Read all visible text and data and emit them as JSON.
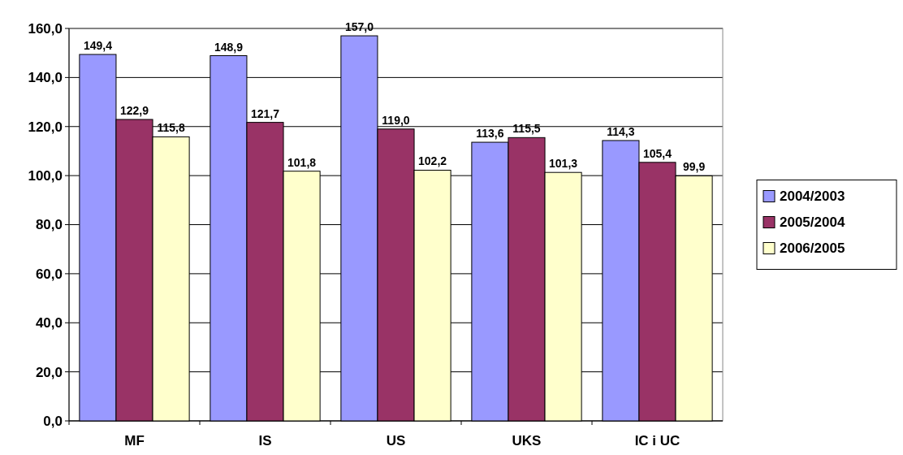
{
  "chart_data": {
    "type": "bar",
    "categories": [
      "MF",
      "IS",
      "US",
      "UKS",
      "IC i UC"
    ],
    "series": [
      {
        "name": "2004/2003",
        "color": "#9999ff",
        "values": [
          149.4,
          148.9,
          157.0,
          113.6,
          114.3
        ],
        "value_labels": [
          "149,4",
          "148,9",
          "157,0",
          "113,6",
          "114,3"
        ]
      },
      {
        "name": "2005/2004",
        "color": "#993366",
        "values": [
          122.9,
          121.7,
          119.0,
          115.5,
          105.4
        ],
        "value_labels": [
          "122,9",
          "121,7",
          "119,0",
          "115,5",
          "105,4"
        ]
      },
      {
        "name": "2006/2005",
        "color": "#ffffcc",
        "values": [
          115.8,
          101.8,
          102.2,
          101.3,
          99.9
        ],
        "value_labels": [
          "115,8",
          "101,8",
          "102,2",
          "101,3",
          "99,9"
        ]
      }
    ],
    "ylim": [
      0,
      160
    ],
    "yticks": [
      {
        "value": 0,
        "label": "0,0"
      },
      {
        "value": 20,
        "label": "20,0"
      },
      {
        "value": 40,
        "label": "40,0"
      },
      {
        "value": 60,
        "label": "60,0"
      },
      {
        "value": 80,
        "label": "80,0"
      },
      {
        "value": 100,
        "label": "100,0"
      },
      {
        "value": 120,
        "label": "120,0"
      },
      {
        "value": 140,
        "label": "140,0"
      },
      {
        "value": 160,
        "label": "160,0"
      }
    ],
    "grid": "y",
    "legend": "right"
  }
}
